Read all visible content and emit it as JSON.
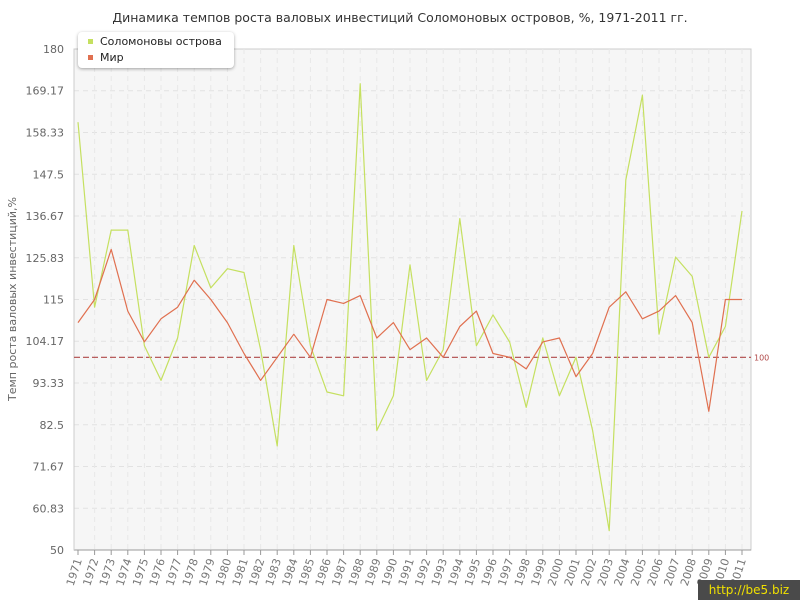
{
  "chart_data": {
    "type": "line",
    "title": "Динамика темпов роста валовых инвестиций Соломоновых островов, %, 1971-2011 гг.",
    "ylabel": "Темп роста валовых инвестиций,%",
    "xlabel": "",
    "ylim": [
      50,
      180
    ],
    "y_ticks": [
      "50",
      "60.83",
      "71.67",
      "82.5",
      "93.33",
      "104.17",
      "115",
      "125.83",
      "136.67",
      "147.5",
      "158.33",
      "169.17",
      "180"
    ],
    "categories": [
      "1971",
      "1972",
      "1973",
      "1974",
      "1975",
      "1976",
      "1977",
      "1978",
      "1979",
      "1980",
      "1981",
      "1982",
      "1983",
      "1984",
      "1985",
      "1986",
      "1987",
      "1988",
      "1989",
      "1990",
      "1991",
      "1992",
      "1993",
      "1994",
      "1995",
      "1996",
      "1997",
      "1998",
      "1999",
      "2000",
      "2001",
      "2002",
      "2003",
      "2004",
      "2005",
      "2006",
      "2007",
      "2008",
      "2009",
      "2010",
      "2011"
    ],
    "series": [
      {
        "name": "Соломоновы острова",
        "color": "#c5e060",
        "values": [
          161,
          113,
          133,
          133,
          103,
          94,
          105,
          129,
          118,
          123,
          122,
          102,
          77,
          129,
          103,
          91,
          90,
          171,
          81,
          90,
          124,
          94,
          102,
          136,
          103,
          111,
          104,
          87,
          105,
          90,
          100,
          81,
          55,
          146,
          168,
          106,
          126,
          121,
          100,
          108,
          138
        ]
      },
      {
        "name": "Мир",
        "color": "#e07050",
        "values": [
          109,
          115,
          128,
          112,
          104,
          110,
          113,
          120,
          115,
          109,
          101,
          94,
          100,
          106,
          100,
          115,
          114,
          116,
          105,
          109,
          102,
          105,
          100,
          108,
          112,
          101,
          100,
          97,
          104,
          105,
          95,
          101,
          113,
          117,
          110,
          112,
          116,
          109,
          86,
          115,
          115
        ]
      }
    ],
    "reference_line": {
      "value": 100,
      "label": "100",
      "color": "#b04848"
    },
    "grid": true,
    "legend_position": "top-left"
  },
  "watermark": "http://be5.biz"
}
